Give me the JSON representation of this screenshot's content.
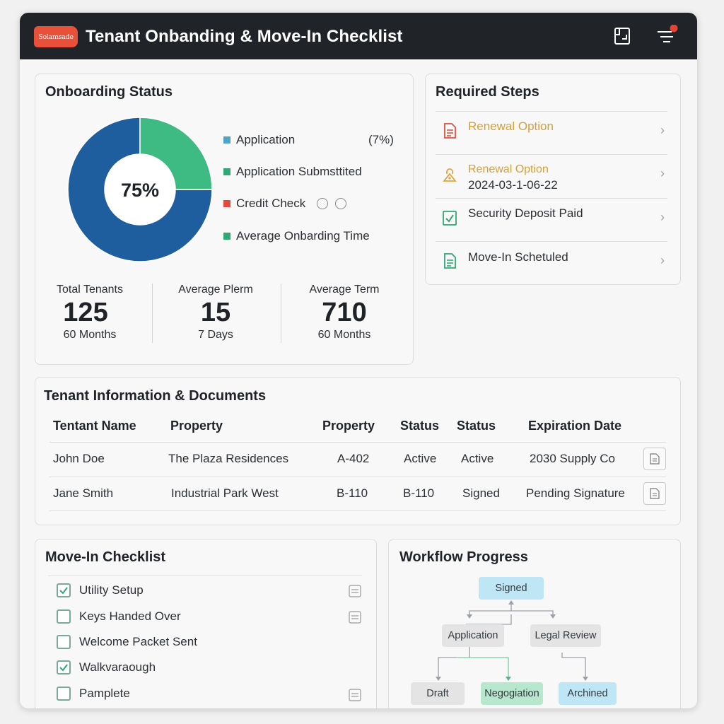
{
  "app": {
    "logo_text": "Solamsade",
    "title": "Tenant Onbanding & Move-In Checklist",
    "icons": [
      "export-icon",
      "notifications-filter-icon"
    ],
    "notification_color": "#e34234"
  },
  "onboarding": {
    "title": "Onboarding Status",
    "chart_data": {
      "type": "pie",
      "center_label": "75%",
      "slices": [
        {
          "value": 75,
          "color": "#1f5e9e"
        },
        {
          "value": 25,
          "color": "#3dbb83"
        }
      ]
    },
    "legend": [
      {
        "label": "Application",
        "value": "(7%)",
        "color": "#4ea3c8"
      },
      {
        "label": "Application Submsttited",
        "color": "#2fa874"
      },
      {
        "label": "Credit Check",
        "color": "#e14b3b"
      },
      {
        "label": "Average Onbarding Time",
        "color": "#2fa874"
      }
    ],
    "stats": [
      {
        "label": "Total Tenants",
        "value": "125",
        "sub": "60 Months"
      },
      {
        "label": "Average Plerm",
        "value": "15",
        "sub": "7 Days"
      },
      {
        "label": "Average Term",
        "value": "710",
        "sub": "60 Months"
      }
    ]
  },
  "required_steps": {
    "title": "Required Steps",
    "items": [
      {
        "label": "Renewal Option",
        "sub": "",
        "icon": "document-icon",
        "color": "#d4a03a",
        "icon_color": "#e0523e"
      },
      {
        "label": "Renewal Option",
        "sub": "2024-03-1-06-22",
        "icon": "lock-icon",
        "color": "#d4a03a",
        "icon_color": "#e0a53a"
      },
      {
        "label": "Security Deposit Paid",
        "sub": "",
        "icon": "checked-document-icon",
        "color": "#2b2f33",
        "icon_color": "#2fa874"
      },
      {
        "label": "Move-In Schetuled",
        "sub": "",
        "icon": "document-icon",
        "color": "#2b2f33",
        "icon_color": "#2fa874"
      }
    ]
  },
  "tenants": {
    "title": "Tenant Information & Documents",
    "columns": [
      "Tentant Name",
      "Property",
      "Property",
      "Status",
      "Status",
      "Expiration Date"
    ],
    "rows": [
      [
        "John Doe",
        "The Plaza Residences",
        "A-402",
        "Active",
        "Active",
        "2030 Supply Co"
      ],
      [
        "Jane Smith",
        "Industrial Park West",
        "B-110",
        "B-110",
        "Signed",
        "Pending Signature"
      ]
    ]
  },
  "checklist": {
    "title": "Move-In Checklist",
    "items": [
      {
        "label": "Utility Setup",
        "checked": true
      },
      {
        "label": "Keys Handed Over",
        "checked": false
      },
      {
        "label": "Welcome Packet Sent",
        "checked": false
      },
      {
        "label": "Walkvaraough",
        "checked": true
      },
      {
        "label": "Pamplete",
        "checked": false
      }
    ]
  },
  "workflow": {
    "title": "Workflow Progress",
    "nodes": {
      "signed": "Signed",
      "application": "Application",
      "legal_review": "Legal Review",
      "draft": "Draft",
      "negotiation": "Negogiation",
      "archived": "Archined"
    }
  }
}
